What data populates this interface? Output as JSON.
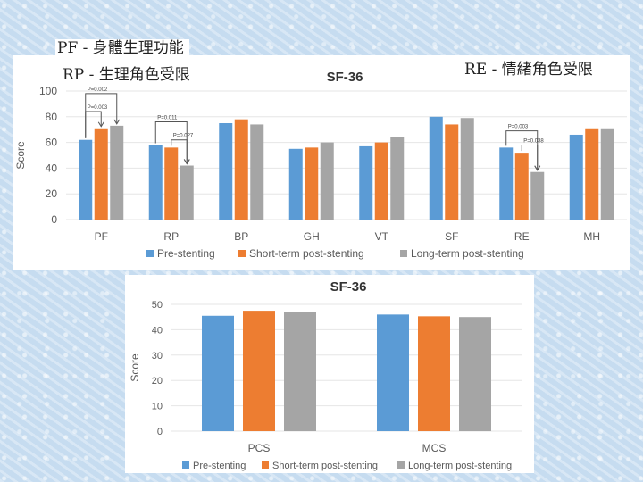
{
  "labels": {
    "pf": "PF - 身體生理功能",
    "rp": "RP - 生理角色受限",
    "re": "RE - 情緒角色受限"
  },
  "colors": {
    "pre": "#5b9bd5",
    "short": "#ed7d31",
    "long": "#a5a5a5",
    "grid": "#e6e6e6",
    "text": "#595959"
  },
  "chart_data": [
    {
      "type": "bar",
      "title": "SF-36",
      "ylabel": "Score",
      "xlabel": "",
      "ylim": [
        0,
        100
      ],
      "yticks": [
        0,
        20,
        40,
        60,
        80,
        100
      ],
      "categories": [
        "PF",
        "RP",
        "BP",
        "GH",
        "VT",
        "SF",
        "RE",
        "MH"
      ],
      "series": [
        {
          "name": "Pre-stenting",
          "values": [
            62,
            58,
            75,
            55,
            57,
            80,
            56,
            66
          ]
        },
        {
          "name": "Short-term post-stenting",
          "values": [
            71,
            56,
            78,
            56,
            60,
            74,
            52,
            71
          ]
        },
        {
          "name": "Long-term post-stenting",
          "values": [
            73,
            42,
            74,
            60,
            64,
            79,
            37,
            71
          ]
        }
      ],
      "annotations": [
        {
          "text": "P=0.002",
          "category": "PF",
          "from": 0,
          "to": 2,
          "level": 98
        },
        {
          "text": "P=0.003",
          "category": "PF",
          "from": 0,
          "to": 1,
          "level": 84
        },
        {
          "text": "P=0.011",
          "category": "RP",
          "from": 0,
          "to": 2,
          "level": 76
        },
        {
          "text": "P=0.027",
          "category": "RP",
          "from": 1,
          "to": 2,
          "level": 62
        },
        {
          "text": "P=0.003",
          "category": "RE",
          "from": 0,
          "to": 2,
          "level": 69
        },
        {
          "text": "P=0.038",
          "category": "RE",
          "from": 1,
          "to": 2,
          "level": 58
        }
      ],
      "legend": "bottom"
    },
    {
      "type": "bar",
      "title": "SF-36",
      "ylabel": "Score",
      "xlabel": "",
      "ylim": [
        0,
        50
      ],
      "yticks": [
        0,
        10,
        20,
        30,
        40,
        50
      ],
      "categories": [
        "PCS",
        "MCS"
      ],
      "series": [
        {
          "name": "Pre-stenting",
          "values": [
            45.5,
            46
          ]
        },
        {
          "name": "Short-term post-stenting",
          "values": [
            47.5,
            45.3
          ]
        },
        {
          "name": "Long-term post-stenting",
          "values": [
            47,
            45
          ]
        }
      ],
      "legend": "bottom"
    }
  ]
}
